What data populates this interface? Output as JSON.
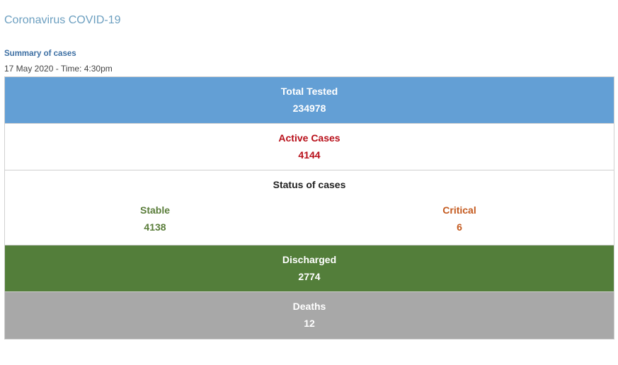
{
  "header": {
    "title": "Coronavirus COVID-19",
    "summary_label": "Summary of cases",
    "date_time": "17 May 2020 - Time: 4:30pm"
  },
  "stats": {
    "total_tested": {
      "label": "Total Tested",
      "value": "234978"
    },
    "active_cases": {
      "label": "Active Cases",
      "value": "4144"
    },
    "status": {
      "label": "Status of cases",
      "stable": {
        "label": "Stable",
        "value": "4138"
      },
      "critical": {
        "label": "Critical",
        "value": "6"
      }
    },
    "discharged": {
      "label": "Discharged",
      "value": "2774"
    },
    "deaths": {
      "label": "Deaths",
      "value": "12"
    }
  },
  "colors": {
    "title": "#6c9fc0",
    "tested_bg": "#639fd5",
    "active_text": "#b8101a",
    "stable_text": "#5a7d3a",
    "critical_text": "#c45a1f",
    "discharged_bg": "#537e3a",
    "deaths_bg": "#a8a8a8"
  }
}
